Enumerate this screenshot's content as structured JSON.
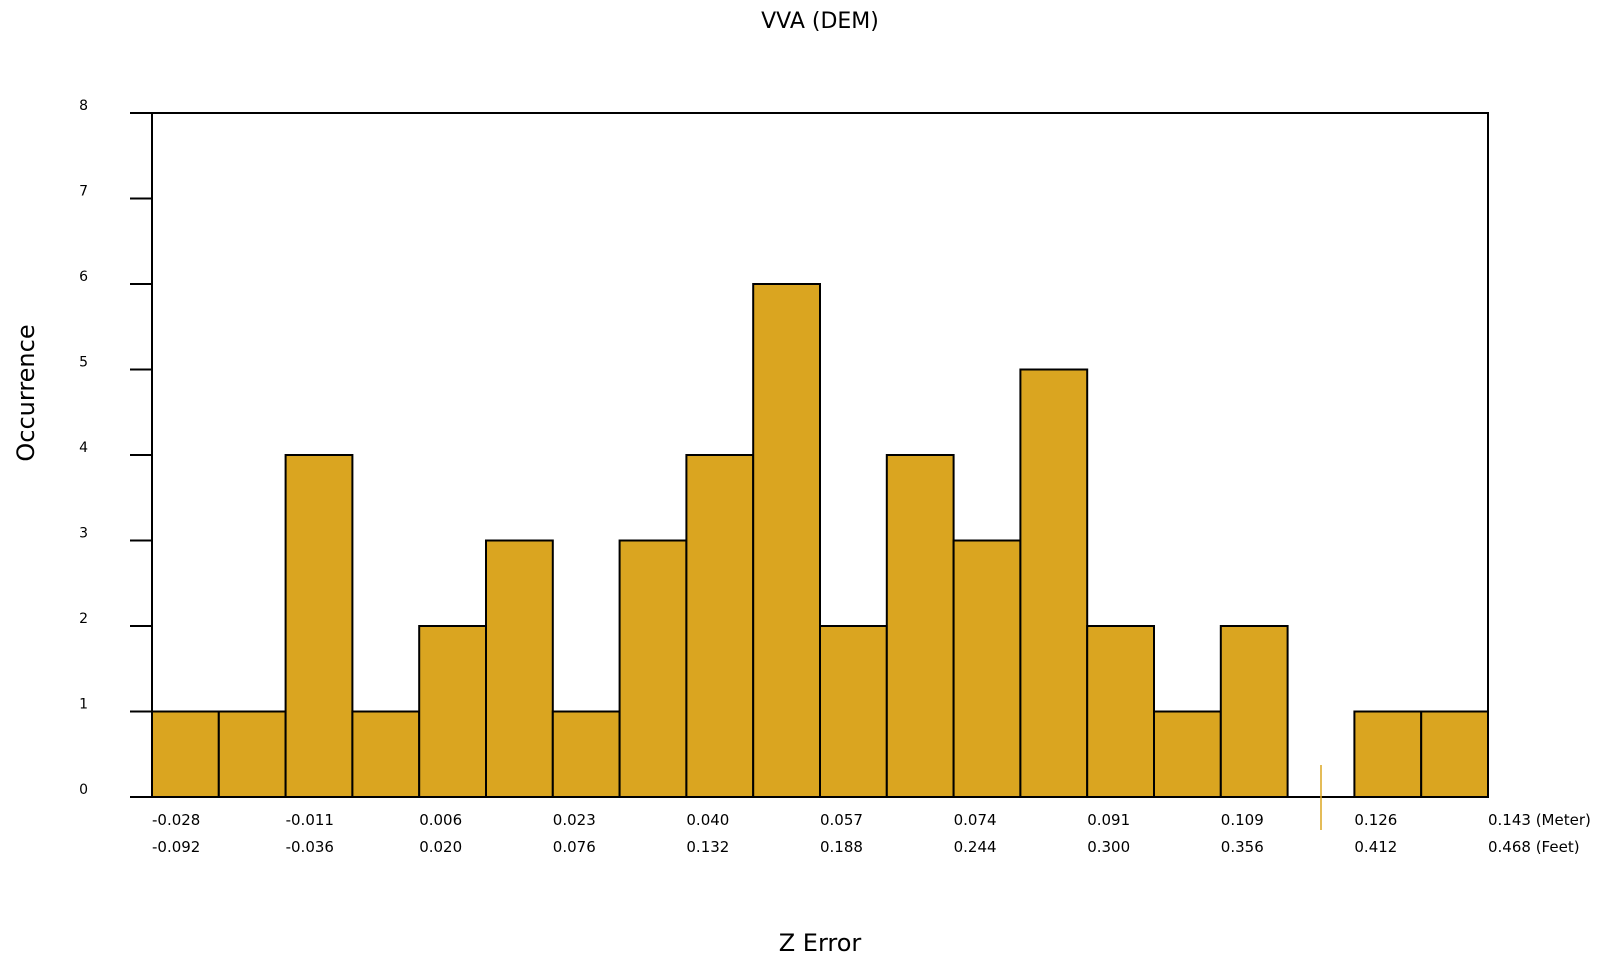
{
  "chart_data": {
    "type": "bar",
    "title": "VVA (DEM)",
    "xlabel": "Z Error",
    "ylabel": "Occurrence",
    "ylim": [
      0,
      8
    ],
    "yticks": [
      "0",
      "1",
      "2",
      "3",
      "4",
      "5",
      "6",
      "7",
      "8"
    ],
    "bins": 20,
    "values": [
      1,
      1,
      4,
      1,
      2,
      3,
      1,
      3,
      4,
      6,
      2,
      4,
      3,
      5,
      2,
      1,
      2,
      0,
      1,
      1
    ],
    "x_ticks_meter": [
      "-0.028",
      "-0.011",
      "0.006",
      "0.023",
      "0.040",
      "0.057",
      "0.074",
      "0.091",
      "0.109",
      "0.126",
      "0.143"
    ],
    "x_ticks_feet": [
      "-0.092",
      "-0.036",
      "0.020",
      "0.076",
      "0.132",
      "0.188",
      "0.244",
      "0.300",
      "0.356",
      "0.412",
      "0.468"
    ],
    "unit_meter": "(Meter)",
    "unit_feet": "(Feet)",
    "bar_color": "#DAA520",
    "marker_color": "#DAA520",
    "grid": false
  }
}
